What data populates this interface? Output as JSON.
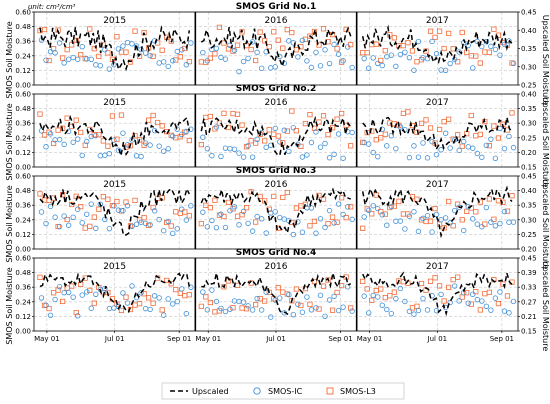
{
  "chart_data": {
    "type": "scatter",
    "unit_label": "unit: cm³/cm³",
    "ylabel_left": "SMOS Soil Moisture",
    "ylabel_right": "Upscaled Soil Moisture",
    "x_tick_labels": [
      "May 01",
      "Jul 01",
      "Sep 01"
    ],
    "years": [
      "2015",
      "2016",
      "2017"
    ],
    "legend": [
      {
        "label": "Upscaled",
        "style": "dashed-line",
        "color": "#000000"
      },
      {
        "label": "SMOS-IC",
        "style": "circle",
        "color": "#3f8fd8"
      },
      {
        "label": "SMOS-L3",
        "style": "square",
        "color": "#f26b38"
      }
    ],
    "legend_position": "bottom",
    "grid": true,
    "panels": [
      {
        "title": "SMOS Grid No.1",
        "left_ylim": [
          0.0,
          0.6
        ],
        "left_ticks": [
          "0.00",
          "0.12",
          "0.24",
          "0.36",
          "0.48",
          "0.60"
        ],
        "right_ylim": [
          0.25,
          0.45
        ],
        "right_ticks": [
          "0.25",
          "0.30",
          "0.35",
          "0.40",
          "0.45"
        ],
        "upscaled_level": 0.38,
        "upscaled_dip": 0.31,
        "ic_center": 0.24,
        "l3_center": 0.33,
        "years_shown": [
          "2015",
          "2016",
          "2017"
        ]
      },
      {
        "title": "SMOS Grid No.2",
        "left_ylim": [
          0.0,
          0.6
        ],
        "left_ticks": [
          "0.00",
          "0.12",
          "0.24",
          "0.36",
          "0.48",
          "0.60"
        ],
        "right_ylim": [
          0.15,
          0.4
        ],
        "right_ticks": [
          "0.15",
          "0.20",
          "0.25",
          "0.30",
          "0.35",
          "0.40"
        ],
        "upscaled_level": 0.29,
        "upscaled_dip": 0.2,
        "ic_center": 0.2,
        "l3_center": 0.31,
        "years_shown": [
          "2015",
          "2016",
          "2017"
        ]
      },
      {
        "title": "SMOS Grid No.3",
        "left_ylim": [
          0.0,
          0.6
        ],
        "left_ticks": [
          "0.00",
          "0.12",
          "0.24",
          "0.36",
          "0.48",
          "0.60"
        ],
        "right_ylim": [
          0.2,
          0.45
        ],
        "right_ticks": [
          "0.20",
          "0.25",
          "0.30",
          "0.35",
          "0.40",
          "0.45"
        ],
        "upscaled_level": 0.38,
        "upscaled_dip": 0.24,
        "ic_center": 0.24,
        "l3_center": 0.32,
        "years_shown": [
          "2015",
          "2016",
          "2017"
        ]
      },
      {
        "title": "SMOS Grid No.4",
        "left_ylim": [
          0.0,
          0.6
        ],
        "left_ticks": [
          "0.00",
          "0.12",
          "0.24",
          "0.36",
          "0.48",
          "0.60"
        ],
        "right_ylim": [
          0.15,
          0.45
        ],
        "right_ticks": [
          "0.15",
          "0.21",
          "0.27",
          "0.33",
          "0.39",
          "0.45"
        ],
        "upscaled_level": 0.36,
        "upscaled_dip": 0.22,
        "ic_center": 0.24,
        "l3_center": 0.3,
        "years_shown": [
          "2015",
          "2016",
          "2017"
        ]
      }
    ]
  }
}
